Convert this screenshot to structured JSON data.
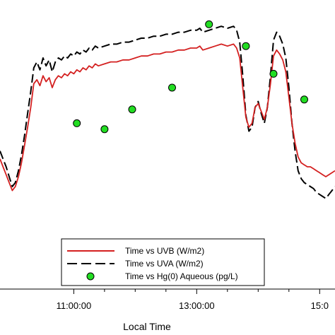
{
  "chart_data": {
    "type": "line",
    "xlabel": "Local Time",
    "ylabel": "",
    "x_unit": "hour of day",
    "xlim": [
      9.8,
      15.25
    ],
    "ylim": [
      0,
      1
    ],
    "x_ticks": [
      {
        "value": 11.0,
        "label": "11:00:00"
      },
      {
        "value": 11.5,
        "label": ""
      },
      {
        "value": 12.0,
        "label": ""
      },
      {
        "value": 12.5,
        "label": ""
      },
      {
        "value": 13.0,
        "label": "13:00:00"
      },
      {
        "value": 13.5,
        "label": ""
      },
      {
        "value": 14.0,
        "label": ""
      },
      {
        "value": 14.5,
        "label": ""
      },
      {
        "value": 15.0,
        "label": "15:0"
      }
    ],
    "grid": false,
    "legend_position": "bottom-center",
    "series": [
      {
        "name": "Time vs UVB (W/m2)",
        "style": "solid",
        "color": "#d42020",
        "x": [
          9.8,
          9.85,
          9.9,
          9.95,
          10.0,
          10.05,
          10.1,
          10.15,
          10.2,
          10.25,
          10.3,
          10.35,
          10.4,
          10.45,
          10.5,
          10.55,
          10.6,
          10.65,
          10.7,
          10.75,
          10.8,
          10.85,
          10.9,
          10.95,
          11.0,
          11.05,
          11.1,
          11.15,
          11.2,
          11.25,
          11.3,
          11.35,
          11.4,
          11.5,
          11.6,
          11.7,
          11.8,
          11.9,
          12.0,
          12.1,
          12.2,
          12.3,
          12.4,
          12.5,
          12.6,
          12.7,
          12.8,
          12.9,
          13.0,
          13.05,
          13.1,
          13.2,
          13.3,
          13.4,
          13.5,
          13.6,
          13.65,
          13.7,
          13.75,
          13.8,
          13.85,
          13.9,
          13.95,
          14.0,
          14.05,
          14.1,
          14.15,
          14.2,
          14.25,
          14.3,
          14.35,
          14.4,
          14.45,
          14.5,
          14.55,
          14.6,
          14.65,
          14.7,
          14.75,
          14.8,
          14.85,
          14.9,
          14.95,
          15.0,
          15.05,
          15.1,
          15.15,
          15.2,
          15.25
        ],
        "values": [
          0.34,
          0.3,
          0.26,
          0.22,
          0.18,
          0.2,
          0.25,
          0.32,
          0.41,
          0.5,
          0.6,
          0.72,
          0.74,
          0.71,
          0.76,
          0.73,
          0.75,
          0.7,
          0.74,
          0.76,
          0.75,
          0.77,
          0.76,
          0.78,
          0.77,
          0.79,
          0.78,
          0.8,
          0.79,
          0.81,
          0.8,
          0.82,
          0.81,
          0.82,
          0.83,
          0.83,
          0.84,
          0.84,
          0.85,
          0.86,
          0.86,
          0.87,
          0.87,
          0.88,
          0.88,
          0.89,
          0.89,
          0.9,
          0.9,
          0.91,
          0.89,
          0.9,
          0.91,
          0.92,
          0.91,
          0.92,
          0.9,
          0.85,
          0.7,
          0.55,
          0.5,
          0.52,
          0.6,
          0.62,
          0.58,
          0.54,
          0.6,
          0.72,
          0.86,
          0.89,
          0.87,
          0.84,
          0.78,
          0.65,
          0.52,
          0.42,
          0.35,
          0.32,
          0.31,
          0.3,
          0.3,
          0.29,
          0.28,
          0.27,
          0.26,
          0.25,
          0.26,
          0.27,
          0.28
        ]
      },
      {
        "name": "Time vs UVA (W/m2)",
        "style": "dashed",
        "color": "#000000",
        "x": [
          9.8,
          9.85,
          9.9,
          9.95,
          10.0,
          10.05,
          10.1,
          10.15,
          10.2,
          10.25,
          10.3,
          10.35,
          10.4,
          10.45,
          10.5,
          10.55,
          10.6,
          10.65,
          10.7,
          10.75,
          10.8,
          10.85,
          10.9,
          10.95,
          11.0,
          11.05,
          11.1,
          11.15,
          11.2,
          11.25,
          11.3,
          11.35,
          11.4,
          11.5,
          11.6,
          11.7,
          11.8,
          11.9,
          12.0,
          12.1,
          12.2,
          12.3,
          12.4,
          12.5,
          12.6,
          12.7,
          12.8,
          12.9,
          13.0,
          13.05,
          13.1,
          13.2,
          13.3,
          13.4,
          13.5,
          13.6,
          13.65,
          13.7,
          13.75,
          13.8,
          13.85,
          13.9,
          13.95,
          14.0,
          14.05,
          14.1,
          14.15,
          14.2,
          14.25,
          14.3,
          14.35,
          14.4,
          14.45,
          14.5,
          14.55,
          14.6,
          14.65,
          14.7,
          14.75,
          14.8,
          14.85,
          14.9,
          14.95,
          15.0,
          15.05,
          15.1,
          15.15,
          15.2,
          15.25
        ],
        "values": [
          0.38,
          0.34,
          0.3,
          0.25,
          0.2,
          0.22,
          0.28,
          0.36,
          0.46,
          0.57,
          0.68,
          0.8,
          0.83,
          0.79,
          0.85,
          0.81,
          0.84,
          0.78,
          0.83,
          0.85,
          0.84,
          0.86,
          0.85,
          0.87,
          0.86,
          0.88,
          0.87,
          0.89,
          0.88,
          0.9,
          0.89,
          0.91,
          0.9,
          0.91,
          0.92,
          0.92,
          0.93,
          0.93,
          0.94,
          0.95,
          0.95,
          0.96,
          0.96,
          0.97,
          0.97,
          0.98,
          0.98,
          0.99,
          0.99,
          1.0,
          0.98,
          0.99,
          1.0,
          1.01,
          1.0,
          1.01,
          0.99,
          0.93,
          0.76,
          0.56,
          0.48,
          0.5,
          0.6,
          0.63,
          0.57,
          0.52,
          0.6,
          0.76,
          0.94,
          0.98,
          0.96,
          0.92,
          0.85,
          0.7,
          0.52,
          0.38,
          0.28,
          0.24,
          0.22,
          0.21,
          0.2,
          0.19,
          0.17,
          0.16,
          0.15,
          0.14,
          0.16,
          0.18,
          0.2
        ]
      },
      {
        "name": "Time vs Hg(0) Aqueous (pg/L)",
        "style": "markers",
        "color": "#22dd22",
        "x": [
          11.05,
          11.5,
          11.95,
          12.6,
          13.2,
          13.8,
          14.25,
          14.75
        ],
        "values": [
          0.52,
          0.49,
          0.59,
          0.7,
          1.02,
          0.91,
          0.77,
          0.64
        ]
      }
    ]
  }
}
